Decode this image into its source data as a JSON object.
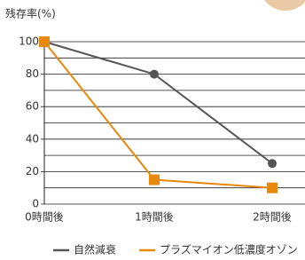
{
  "chart_data": {
    "type": "line",
    "y_label": "残存率(%)",
    "categories": [
      "0時間後",
      "1時間後",
      "2時間後"
    ],
    "series": [
      {
        "name": "自然減衰",
        "color": "#555555",
        "marker": "circle",
        "values": [
          100,
          80,
          25
        ]
      },
      {
        "name": "プラズマイオン低濃度オゾン",
        "color": "#e8890c",
        "marker": "square",
        "values": [
          100,
          15,
          10
        ]
      }
    ],
    "ylim": [
      0,
      100
    ],
    "yticks": [
      0,
      20,
      40,
      60,
      80,
      100
    ],
    "minor_yticks": [
      10,
      30,
      50,
      70,
      90
    ],
    "grid": true
  }
}
